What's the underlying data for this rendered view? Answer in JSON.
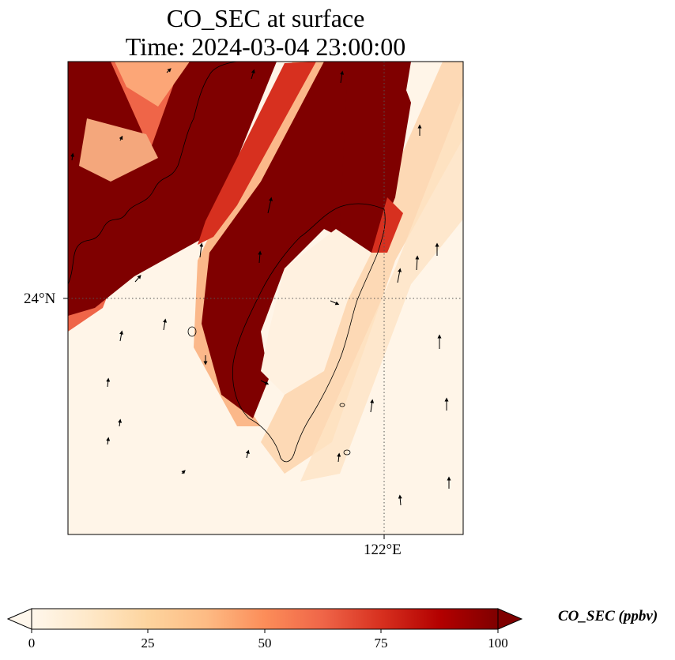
{
  "title": {
    "line1": "CO_SEC at surface",
    "line2": "Time: 2024-03-04 23:00:00"
  },
  "axes": {
    "lat_tick": "24°N",
    "lon_tick": "122°E",
    "gridlines": "dotted"
  },
  "colorbar": {
    "label": "CO_SEC (ppbv)",
    "ticks": [
      "0",
      "25",
      "50",
      "75",
      "100"
    ],
    "colormap": "OrRd",
    "colors": [
      "#fff7ec",
      "#fee8c8",
      "#fdd49e",
      "#fdbb84",
      "#fc8d59",
      "#ef6548",
      "#d7301f",
      "#b30000",
      "#7f0000"
    ],
    "extend": "both"
  },
  "map_data": {
    "variable": "CO_SEC",
    "level": "surface",
    "plume_bands": [
      {
        "name": "northwest-band",
        "max_value": 100
      },
      {
        "name": "central-band",
        "max_value": 100
      },
      {
        "name": "eastern-band",
        "max_value": 100
      }
    ],
    "wind_vectors": "quiver arrows, mostly northward"
  }
}
